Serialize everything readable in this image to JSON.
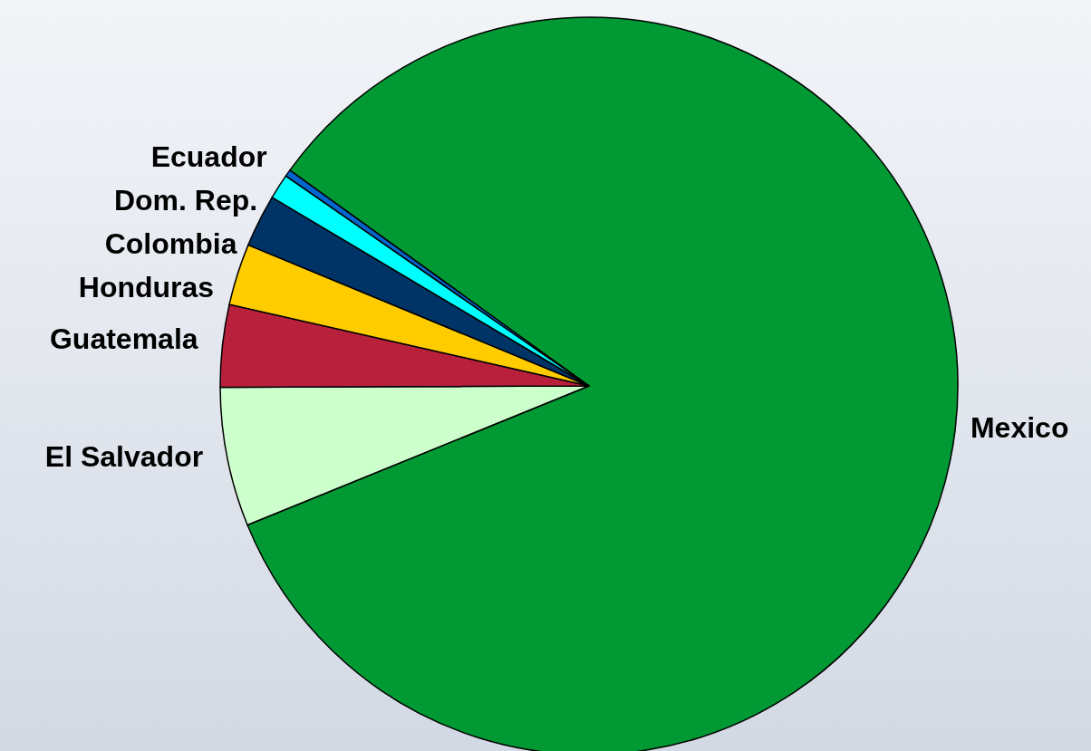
{
  "chart_data": {
    "type": "pie",
    "categories": [
      "Mexico",
      "El Salvador",
      "Guatemala",
      "Honduras",
      "Colombia",
      "Dom. Rep.",
      "Ecuador"
    ],
    "values": [
      83.9,
      6.1,
      3.6,
      2.7,
      2.3,
      1.1,
      0.3
    ],
    "colors": [
      "#009933",
      "#ccffcc",
      "#b8203c",
      "#ffcc00",
      "#003366",
      "#00ffff",
      "#0066cc"
    ]
  }
}
